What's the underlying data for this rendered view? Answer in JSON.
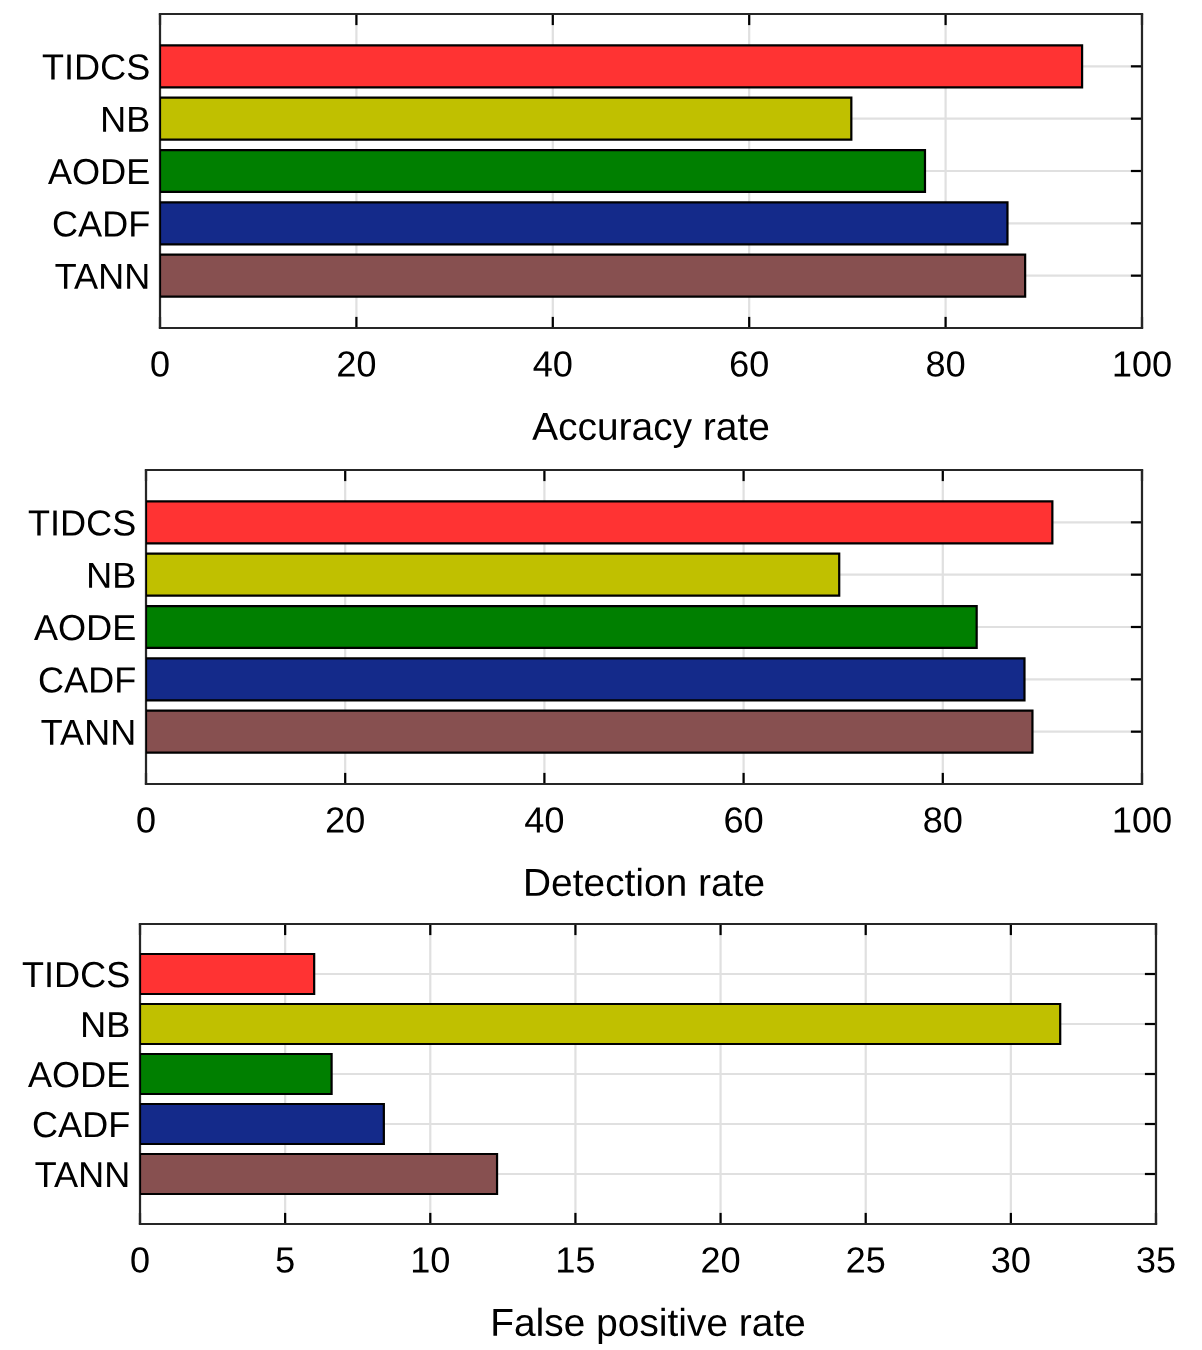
{
  "chart_data": [
    {
      "type": "bar",
      "orientation": "horizontal",
      "xlabel": "Accuracy rate",
      "categories": [
        "TIDCS",
        "NB",
        "AODE",
        "CADF",
        "TANN"
      ],
      "values": [
        93.9,
        70.4,
        77.9,
        86.3,
        88.1
      ],
      "colors": [
        "#ff3333",
        "#c0c000",
        "#007f00",
        "#142a8a",
        "#875050"
      ],
      "xlim": [
        0,
        100
      ],
      "xticks": [
        0,
        20,
        40,
        60,
        80,
        100
      ],
      "grid": true
    },
    {
      "type": "bar",
      "orientation": "horizontal",
      "xlabel": "Detection rate",
      "categories": [
        "TIDCS",
        "NB",
        "AODE",
        "CADF",
        "TANN"
      ],
      "values": [
        91.0,
        69.6,
        83.4,
        88.2,
        89.0
      ],
      "colors": [
        "#ff3333",
        "#c0c000",
        "#007f00",
        "#142a8a",
        "#875050"
      ],
      "xlim": [
        0,
        100
      ],
      "xticks": [
        0,
        20,
        40,
        60,
        80,
        100
      ],
      "grid": true
    },
    {
      "type": "bar",
      "orientation": "horizontal",
      "xlabel": "False positive rate",
      "categories": [
        "TIDCS",
        "NB",
        "AODE",
        "CADF",
        "TANN"
      ],
      "values": [
        6.0,
        31.7,
        6.6,
        8.4,
        12.3
      ],
      "colors": [
        "#ff3333",
        "#c0c000",
        "#007f00",
        "#142a8a",
        "#875050"
      ],
      "xlim": [
        0,
        35
      ],
      "xticks": [
        0,
        5,
        10,
        15,
        20,
        25,
        30,
        35
      ],
      "grid": true
    }
  ]
}
